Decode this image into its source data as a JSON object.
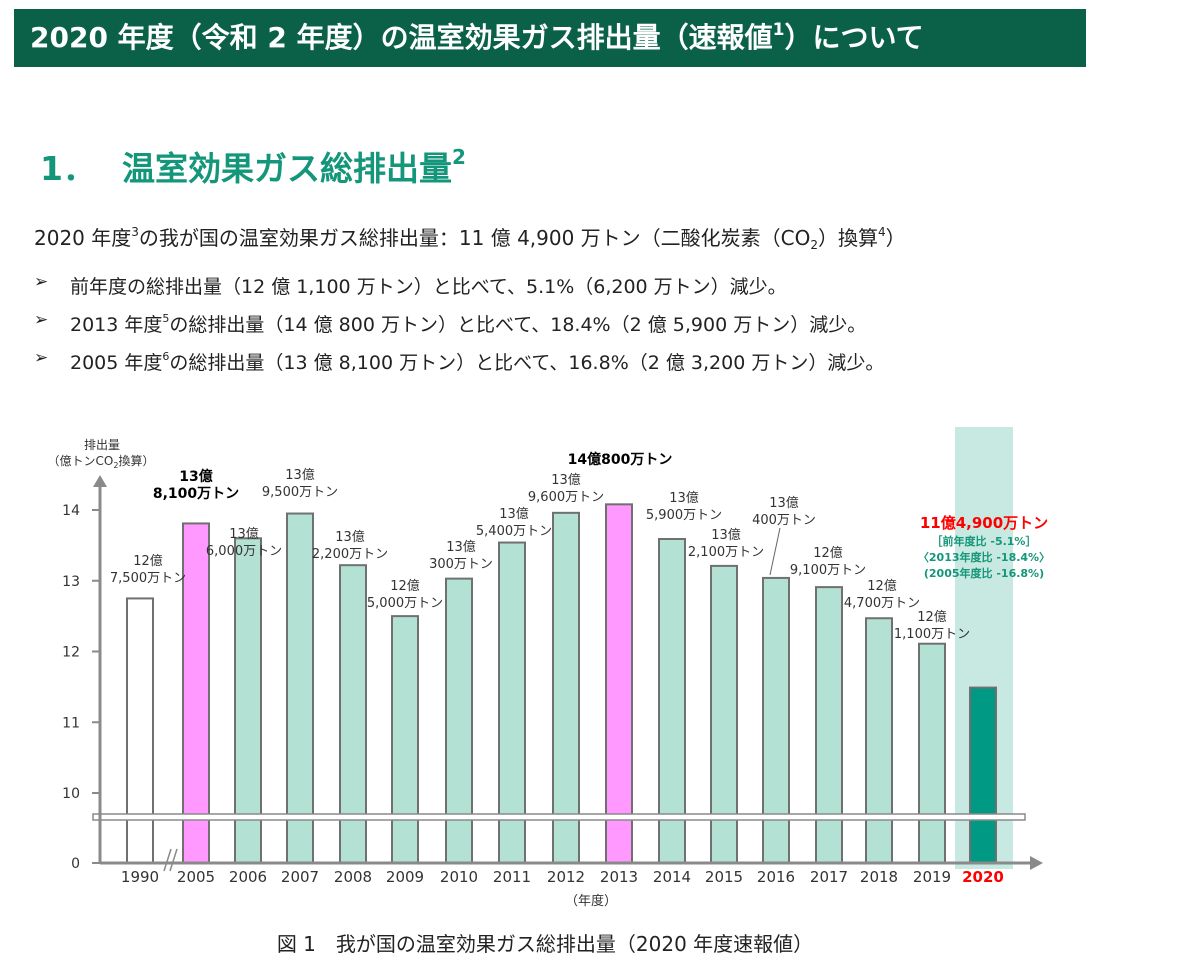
{
  "banner": {
    "title": "2020 年度（令和 2 年度）の温室効果ガス排出量（速報値",
    "sup": "1",
    "title_end": "）について"
  },
  "section": {
    "number": "1．",
    "title": "温室効果ガス総排出量",
    "sup": "2"
  },
  "summary": {
    "pre": "2020 年度",
    "sup1": "3",
    "mid": "の我が国の温室効果ガス総排出量：11 億 4,900 万トン（二酸化炭素（CO",
    "sub": "2",
    "post": "）換算",
    "sup2": "4",
    "end": "）"
  },
  "bullets": [
    {
      "marker": "➢",
      "pre": "前年度の総排出量（12 億 1,100 万トン）と比べて、5.1%（6,200 万トン）減少。",
      "sup": "",
      "post": ""
    },
    {
      "marker": "➢",
      "pre": "2013 年度",
      "sup": "5",
      "post": "の総排出量（14 億 800 万トン）と比べて、18.4%（2 億 5,900 万トン）減少。"
    },
    {
      "marker": "➢",
      "pre": "2005 年度",
      "sup": "6",
      "post": "の総排出量（13 億 8,100 万トン）と比べて、16.8%（2 億 3,200 万トン）減少。"
    }
  ],
  "chart_data": {
    "type": "bar",
    "ylabel_line1": "排出量",
    "ylabel_line2_pre": "（億トンCO",
    "ylabel_line2_sub": "2",
    "ylabel_line2_post": "換算）",
    "xlabel": "（年度）",
    "yticks": [
      0,
      10,
      11,
      12,
      13,
      14
    ],
    "ylim": [
      10,
      14.5
    ],
    "axis_break": true,
    "categories": [
      "1990",
      "2005",
      "2006",
      "2007",
      "2008",
      "2009",
      "2010",
      "2011",
      "2012",
      "2013",
      "2014",
      "2015",
      "2016",
      "2017",
      "2018",
      "2019",
      "2020"
    ],
    "values": [
      12.75,
      13.81,
      13.6,
      13.95,
      13.22,
      12.5,
      13.03,
      13.54,
      13.96,
      14.08,
      13.59,
      13.21,
      13.04,
      12.91,
      12.47,
      12.11,
      11.49
    ],
    "bar_styles": [
      "outline",
      "highlight",
      "normal",
      "normal",
      "normal",
      "normal",
      "normal",
      "normal",
      "normal",
      "highlight",
      "normal",
      "normal",
      "normal",
      "normal",
      "normal",
      "normal",
      "current"
    ],
    "data_labels": [
      [
        "12億",
        "7,500万トン"
      ],
      [
        "13億",
        "8,100万トン"
      ],
      [
        "13億",
        "6,000万トン"
      ],
      [
        "13億",
        "9,500万トン"
      ],
      [
        "13億",
        "2,200万トン"
      ],
      [
        "12億",
        "5,000万トン"
      ],
      [
        "13億",
        "300万トン"
      ],
      [
        "13億",
        "5,400万トン"
      ],
      [
        "13億",
        "9,600万トン"
      ],
      [
        "14億800万トン"
      ],
      [
        "13億",
        "5,900万トン"
      ],
      [
        "13億",
        "2,100万トン"
      ],
      [
        "13億",
        "400万トン"
      ],
      [
        "12億",
        "9,100万トン"
      ],
      [
        "12億",
        "4,700万トン"
      ],
      [
        "12億",
        "1,100万トン"
      ],
      [
        "11億4,900万トン",
        "［前年度比 -5.1%］",
        "〈2013年度比 -18.4%〉",
        "(2005年度比 -16.8%)"
      ]
    ],
    "colors": {
      "normal": "#b3e2d4",
      "highlight": "#ff99ff",
      "current": "#009984",
      "current_band": "#c7e9e1",
      "outline": "#ffffff",
      "bar_edge": "#707070",
      "axis": "#8a8a8a",
      "current_label": "#ff0000",
      "current_detail": "#14967a"
    }
  },
  "caption": "図 1　我が国の温室効果ガス総排出量（2020 年度速報値）"
}
